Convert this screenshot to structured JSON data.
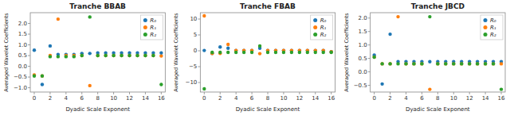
{
  "chart_data": [
    {
      "type": "scatter",
      "title": "Tranche BBAB",
      "x_label": "Dyadic Scale Exponent",
      "y_label": "Averaged Wavelet Coefficients",
      "x": [
        0,
        1,
        2,
        3,
        4,
        5,
        6,
        7,
        8,
        9,
        10,
        11,
        12,
        13,
        14,
        15,
        16
      ],
      "xlim": [
        -0.5,
        16.5
      ],
      "xticks": [
        0,
        2,
        4,
        6,
        8,
        10,
        12,
        14,
        16
      ],
      "ylim": [
        -1.2,
        2.5
      ],
      "yticks": [
        {
          "value": -1.0,
          "label": "−1.0"
        },
        {
          "value": -0.5,
          "label": "−0.5"
        },
        {
          "value": 0.0,
          "label": "0.0"
        },
        0.5,
        {
          "value": 1.0,
          "label": "1.0"
        },
        1.5,
        {
          "value": 2.0,
          "label": "2.0"
        }
      ],
      "grid": false,
      "legend": "upper right",
      "series": [
        {
          "name": "R₀",
          "color": "#1f77b4",
          "values": [
            0.75,
            -0.85,
            0.95,
            0.55,
            0.55,
            0.55,
            0.6,
            0.6,
            0.62,
            0.62,
            0.62,
            0.62,
            0.62,
            0.62,
            0.62,
            0.62,
            0.62
          ]
        },
        {
          "name": "R₁",
          "color": "#ff7f0e",
          "values": [
            -0.4,
            -0.45,
            0.5,
            2.2,
            0.5,
            0.5,
            0.5,
            -0.9,
            0.5,
            0.5,
            0.5,
            0.5,
            0.5,
            0.5,
            0.5,
            0.5,
            0.48
          ]
        },
        {
          "name": "R₂",
          "color": "#2ca02c",
          "values": [
            -0.45,
            -0.45,
            0.45,
            0.45,
            0.45,
            0.45,
            0.5,
            2.3,
            0.5,
            0.5,
            0.5,
            0.5,
            0.5,
            0.5,
            0.5,
            0.5,
            -0.85
          ]
        }
      ]
    },
    {
      "type": "scatter",
      "title": "Tranche FBAB",
      "x_label": "Dyadic Scale Exponent",
      "y_label": "Averaged Wavelet Coefficients",
      "x": [
        0,
        1,
        2,
        3,
        4,
        5,
        6,
        7,
        8,
        9,
        10,
        11,
        12,
        13,
        14,
        15,
        16
      ],
      "xlim": [
        -0.5,
        16.5
      ],
      "xticks": [
        0,
        2,
        4,
        6,
        8,
        10,
        12,
        14,
        16
      ],
      "ylim": [
        -13.0,
        12.0
      ],
      "yticks": [
        {
          "value": -10.0,
          "label": "−10"
        },
        {
          "value": -5.0,
          "label": "−5"
        },
        0,
        5,
        10
      ],
      "grid": false,
      "legend": "upper right",
      "series": [
        {
          "name": "R₀",
          "color": "#1f77b4",
          "values": [
            0.1,
            -0.8,
            1.2,
            0.8,
            0.1,
            0.1,
            0.1,
            0.8,
            0.1,
            0.1,
            0.1,
            0.1,
            0.1,
            0.1,
            0.1,
            0.1,
            -0.3
          ]
        },
        {
          "name": "R₁",
          "color": "#ff7f0e",
          "values": [
            11.0,
            -0.8,
            -0.8,
            2.0,
            0.1,
            0.1,
            0.1,
            -0.9,
            0.1,
            0.1,
            0.1,
            0.1,
            0.1,
            0.1,
            0.1,
            0.1,
            -0.3
          ]
        },
        {
          "name": "R₂",
          "color": "#2ca02c",
          "values": [
            -12.0,
            -0.5,
            -0.5,
            -0.5,
            -0.5,
            -0.5,
            -0.5,
            1.5,
            -0.5,
            -0.5,
            -0.5,
            -0.5,
            -0.5,
            -0.5,
            -0.5,
            -0.5,
            -0.5
          ]
        }
      ]
    },
    {
      "type": "scatter",
      "title": "Tranche JBCD",
      "x_label": "Dyadic Scale Exponent",
      "y_label": "Averaged Wavelet Coefficients",
      "x": [
        0,
        1,
        2,
        3,
        4,
        5,
        6,
        7,
        8,
        9,
        10,
        11,
        12,
        13,
        14,
        15,
        16
      ],
      "xlim": [
        -0.5,
        16.5
      ],
      "xticks": [
        0,
        2,
        4,
        6,
        8,
        10,
        12,
        14,
        16
      ],
      "ylim": [
        -0.75,
        2.2
      ],
      "yticks": [
        {
          "value": -0.5,
          "label": "−0.5"
        },
        {
          "value": 0.0,
          "label": "0.0"
        },
        0.5,
        {
          "value": 1.0,
          "label": "1.0"
        },
        1.5,
        {
          "value": 2.0,
          "label": "2.0"
        }
      ],
      "grid": false,
      "legend": "upper right",
      "series": [
        {
          "name": "R₀",
          "color": "#1f77b4",
          "values": [
            0.62,
            -0.45,
            1.4,
            0.38,
            0.38,
            0.38,
            0.38,
            0.38,
            0.38,
            0.38,
            0.38,
            0.38,
            0.38,
            0.38,
            0.38,
            0.38,
            0.38
          ]
        },
        {
          "name": "R₁",
          "color": "#ff7f0e",
          "values": [
            0.55,
            0.3,
            0.3,
            2.05,
            0.3,
            0.3,
            0.3,
            -0.65,
            0.3,
            0.3,
            0.3,
            0.3,
            0.3,
            0.3,
            0.3,
            0.3,
            0.3
          ]
        },
        {
          "name": "R₂",
          "color": "#2ca02c",
          "values": [
            0.55,
            0.3,
            0.3,
            0.3,
            0.3,
            0.3,
            0.3,
            2.05,
            0.3,
            0.3,
            0.3,
            0.3,
            0.3,
            0.3,
            0.3,
            0.3,
            -0.65
          ]
        }
      ]
    }
  ]
}
